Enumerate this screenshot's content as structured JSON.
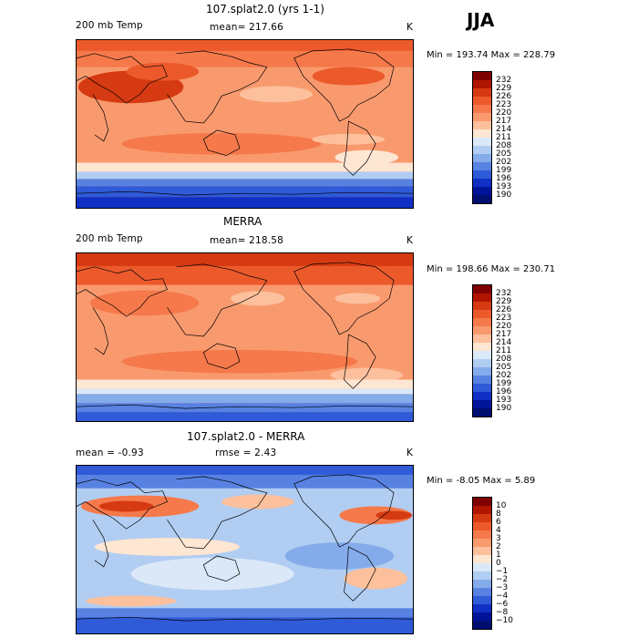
{
  "season": "JJA",
  "panels": [
    {
      "title": "107.splat2.0 (yrs 1-1)",
      "left_label": "200 mb Temp",
      "center_label": "mean= 217.66",
      "units": "K",
      "stats": "Min = 193.74 Max = 228.79"
    },
    {
      "title": "MERRA",
      "left_label": "200 mb Temp",
      "center_label": "mean= 218.58",
      "units": "K",
      "stats": "Min = 198.66 Max = 230.71"
    },
    {
      "title": "107.splat2.0 - MERRA",
      "left_label": "mean =   -0.93",
      "center_label": "rmse =    2.43",
      "units": "K",
      "stats": "Min =  -8.05 Max =    5.89"
    }
  ],
  "colorbars": {
    "abs": {
      "levels": [
        "232",
        "229",
        "226",
        "223",
        "220",
        "217",
        "214",
        "211",
        "208",
        "205",
        "202",
        "199",
        "196",
        "193",
        "190"
      ],
      "colors": [
        "#7f0000",
        "#b01500",
        "#d63a12",
        "#ec5a2c",
        "#f5794a",
        "#f99a6e",
        "#fcc09c",
        "#fde6d2",
        "#dbe8f8",
        "#b1cdf2",
        "#84abea",
        "#5882e2",
        "#2f5ad8",
        "#1030c4",
        "#001499",
        "#000e70"
      ]
    },
    "diff": {
      "levels": [
        "10",
        "8",
        "6",
        "4",
        "3",
        "2",
        "1",
        "0",
        "−1",
        "−2",
        "−3",
        "−4",
        "−6",
        "−8",
        "−10"
      ],
      "colors": [
        "#7f0000",
        "#b01500",
        "#d63a12",
        "#ec5a2c",
        "#f5794a",
        "#f99a6e",
        "#fcc09c",
        "#fde6d2",
        "#dbe8f8",
        "#b1cdf2",
        "#84abea",
        "#5882e2",
        "#2f5ad8",
        "#1030c4",
        "#001499",
        "#000e70"
      ]
    }
  },
  "chart_data": [
    {
      "type": "heatmap",
      "title": "107.splat2.0 (yrs 1-1)",
      "variable": "200 mb Temp",
      "units": "K",
      "mean": 217.66,
      "min": 193.74,
      "max": 228.79,
      "contour_levels": [
        190,
        193,
        196,
        199,
        202,
        205,
        208,
        211,
        214,
        217,
        220,
        223,
        226,
        229,
        232
      ]
    },
    {
      "type": "heatmap",
      "title": "MERRA",
      "variable": "200 mb Temp",
      "units": "K",
      "mean": 218.58,
      "min": 198.66,
      "max": 230.71,
      "contour_levels": [
        190,
        193,
        196,
        199,
        202,
        205,
        208,
        211,
        214,
        217,
        220,
        223,
        226,
        229,
        232
      ]
    },
    {
      "type": "heatmap",
      "title": "107.splat2.0 - MERRA",
      "units": "K",
      "mean": -0.93,
      "rmse": 2.43,
      "min": -8.05,
      "max": 5.89,
      "contour_levels": [
        -10,
        -8,
        -6,
        -4,
        -3,
        -2,
        -1,
        0,
        1,
        2,
        3,
        4,
        6,
        8,
        10
      ]
    }
  ]
}
